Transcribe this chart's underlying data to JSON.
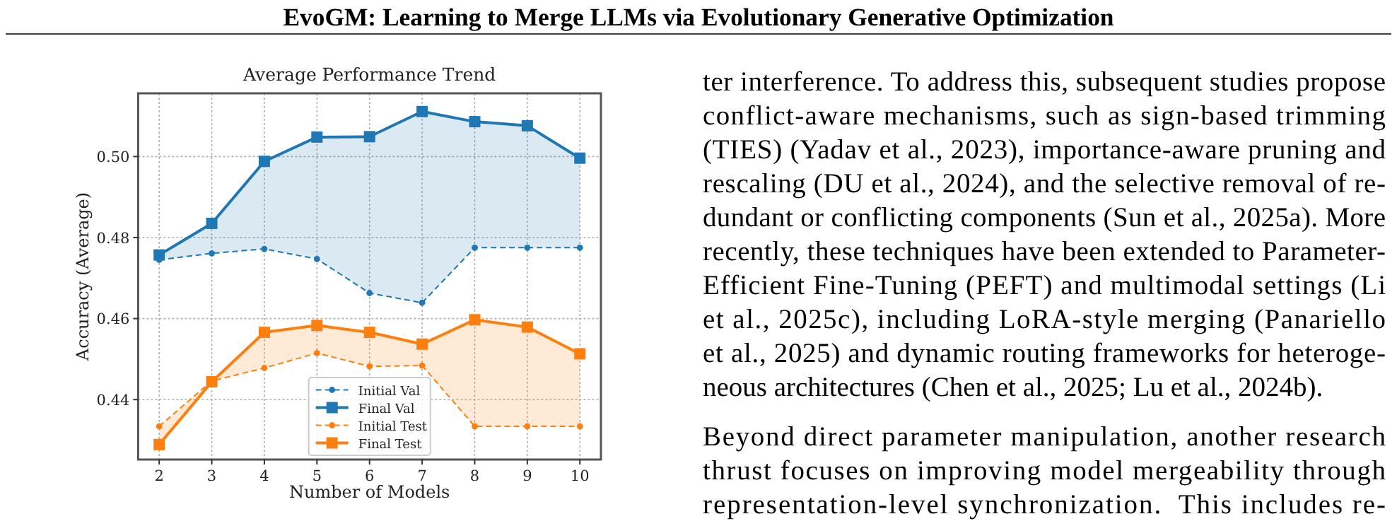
{
  "chart_data": {
    "type": "line",
    "title": "Average Performance Trend",
    "xlabel": "Number of Models",
    "ylabel": "Accuracy (Average)",
    "x": [
      2,
      3,
      4,
      5,
      6,
      7,
      8,
      9,
      10
    ],
    "series": [
      {
        "name": "Initial Val",
        "color": "#1f77b4",
        "marker": "circle",
        "line_style": "dashed",
        "values": [
          0.4745,
          0.4761,
          0.4772,
          0.4747,
          0.4663,
          0.4639,
          0.4775,
          0.4775,
          0.4775
        ]
      },
      {
        "name": "Final Val",
        "color": "#1f77b4",
        "marker": "square",
        "line_style": "solid",
        "values": [
          0.4757,
          0.4835,
          0.4988,
          0.5048,
          0.5049,
          0.5111,
          0.5086,
          0.5076,
          0.4996
        ],
        "lower": [
          0.4745,
          0.4761,
          0.4772,
          0.4747,
          0.4663,
          0.4639,
          0.4775,
          0.4775,
          0.4775
        ],
        "upper": [
          0.4757,
          0.4835,
          0.4988,
          0.5048,
          0.5049,
          0.5111,
          0.5086,
          0.5076,
          0.4996
        ]
      },
      {
        "name": "Initial Test",
        "color": "#ff7f0e",
        "marker": "circle",
        "line_style": "dashed",
        "values": [
          0.4334,
          0.4446,
          0.4478,
          0.4515,
          0.4482,
          0.4484,
          0.4334,
          0.4334,
          0.4334
        ]
      },
      {
        "name": "Final Test",
        "color": "#ff7f0e",
        "marker": "square",
        "line_style": "solid",
        "values": [
          0.4289,
          0.4444,
          0.4566,
          0.4583,
          0.4566,
          0.4537,
          0.4597,
          0.4579,
          0.4513
        ],
        "lower": [
          0.4334,
          0.4446,
          0.4478,
          0.4515,
          0.4482,
          0.4484,
          0.4334,
          0.4334,
          0.4334
        ],
        "upper": [
          0.4289,
          0.4444,
          0.4566,
          0.4583,
          0.4566,
          0.4537,
          0.4597,
          0.4579,
          0.4513
        ]
      }
    ],
    "xlim": [
      1.6,
      10.4
    ],
    "xticks": [
      2,
      3,
      4,
      5,
      6,
      7,
      8,
      9,
      10
    ],
    "ylim": [
      0.4252,
      0.5156
    ],
    "yticks": [
      {
        "value": 0.44,
        "label": "0.44"
      },
      {
        "value": 0.46,
        "label": "0.46"
      },
      {
        "value": 0.48,
        "label": "0.48"
      },
      {
        "value": 0.5,
        "label": "0.50"
      }
    ],
    "grid": true,
    "legend": "bottom",
    "annotations": [
      "EvoGM: Learning to Merge LLMs via Evolutionary Generative Optimization",
      "ter interference. To address this, subsequent studies propose",
      "conflict-aware mechanisms, such as sign-based trimming",
      "(TIES) (Yadav et al., 2023), importance-aware pruning and",
      "rescaling (DU et al., 2024), and the selective removal of re-",
      "dundant or conflicting components (Sun et al., 2025a). More",
      "recently, these techniques have been extended to Parameter-",
      "Efficient Fine-Tuning (PEFT) and multimodal settings (Li",
      "et al., 2025c), including LoRA-style merging (Panariello",
      "et al., 2025) and dynamic routing frameworks for heteroge-",
      "neous architectures (Chen et al., 2025; Lu et al., 2024b).",
      "Beyond direct parameter manipulation, another research",
      "thrust focuses on improving model mergeability through",
      "representation-level synchronization.  This includes re-"
    ]
  }
}
